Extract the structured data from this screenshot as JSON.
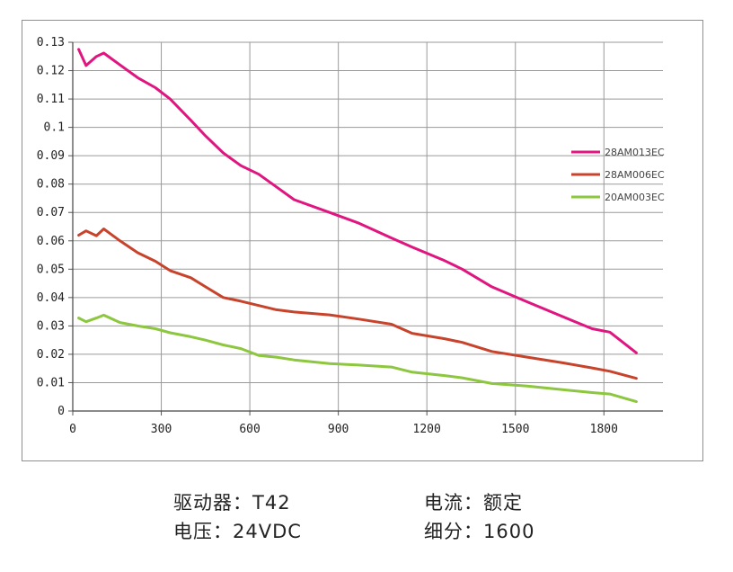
{
  "chart_data": {
    "type": "line",
    "title": "",
    "xlabel": "",
    "ylabel": "",
    "xlim": [
      0,
      2000
    ],
    "ylim": [
      0,
      0.13
    ],
    "x_ticks": [
      0,
      300,
      600,
      900,
      1200,
      1500,
      1800
    ],
    "y_ticks": [
      0,
      0.01,
      0.02,
      0.03,
      0.04,
      0.05,
      0.06,
      0.07,
      0.08,
      0.09,
      0.1,
      0.11,
      0.12,
      0.13
    ],
    "grid": true,
    "legend_position": "right",
    "series": [
      {
        "name": "28AM013EC",
        "color": "#e0157f",
        "points": [
          [
            20,
            0.1275
          ],
          [
            45,
            0.1218
          ],
          [
            80,
            0.125
          ],
          [
            105,
            0.1262
          ],
          [
            160,
            0.122
          ],
          [
            220,
            0.1175
          ],
          [
            280,
            0.114
          ],
          [
            330,
            0.11
          ],
          [
            400,
            0.1025
          ],
          [
            450,
            0.097
          ],
          [
            510,
            0.091
          ],
          [
            570,
            0.0865
          ],
          [
            630,
            0.0835
          ],
          [
            690,
            0.079
          ],
          [
            750,
            0.0745
          ],
          [
            870,
            0.07
          ],
          [
            970,
            0.0662
          ],
          [
            1080,
            0.061
          ],
          [
            1150,
            0.0578
          ],
          [
            1260,
            0.053
          ],
          [
            1320,
            0.05
          ],
          [
            1420,
            0.0438
          ],
          [
            1540,
            0.0385
          ],
          [
            1660,
            0.0333
          ],
          [
            1760,
            0.029
          ],
          [
            1820,
            0.0278
          ],
          [
            1910,
            0.0205
          ]
        ]
      },
      {
        "name": "28AM006EC",
        "color": "#c8432b",
        "points": [
          [
            20,
            0.062
          ],
          [
            45,
            0.0635
          ],
          [
            80,
            0.0618
          ],
          [
            105,
            0.0642
          ],
          [
            160,
            0.06
          ],
          [
            220,
            0.0558
          ],
          [
            280,
            0.0528
          ],
          [
            330,
            0.0495
          ],
          [
            400,
            0.047
          ],
          [
            450,
            0.0438
          ],
          [
            510,
            0.04
          ],
          [
            570,
            0.0387
          ],
          [
            630,
            0.0372
          ],
          [
            690,
            0.0357
          ],
          [
            750,
            0.0349
          ],
          [
            870,
            0.0339
          ],
          [
            970,
            0.0324
          ],
          [
            1080,
            0.0306
          ],
          [
            1150,
            0.0274
          ],
          [
            1260,
            0.0255
          ],
          [
            1320,
            0.0242
          ],
          [
            1420,
            0.021
          ],
          [
            1540,
            0.019
          ],
          [
            1660,
            0.017
          ],
          [
            1760,
            0.0152
          ],
          [
            1820,
            0.014
          ],
          [
            1910,
            0.0115
          ]
        ]
      },
      {
        "name": "20AM003EC",
        "color": "#8dc63f",
        "points": [
          [
            20,
            0.0328
          ],
          [
            45,
            0.0315
          ],
          [
            80,
            0.0328
          ],
          [
            105,
            0.0338
          ],
          [
            160,
            0.0312
          ],
          [
            220,
            0.03
          ],
          [
            280,
            0.029
          ],
          [
            330,
            0.0276
          ],
          [
            400,
            0.0262
          ],
          [
            450,
            0.025
          ],
          [
            510,
            0.0233
          ],
          [
            570,
            0.022
          ],
          [
            630,
            0.0196
          ],
          [
            690,
            0.019
          ],
          [
            750,
            0.018
          ],
          [
            870,
            0.0167
          ],
          [
            970,
            0.0162
          ],
          [
            1080,
            0.0155
          ],
          [
            1150,
            0.0137
          ],
          [
            1260,
            0.0125
          ],
          [
            1320,
            0.0117
          ],
          [
            1420,
            0.0097
          ],
          [
            1540,
            0.0088
          ],
          [
            1660,
            0.0075
          ],
          [
            1760,
            0.0065
          ],
          [
            1820,
            0.006
          ],
          [
            1910,
            0.0033
          ]
        ]
      }
    ]
  },
  "specs": {
    "driver": "驱动器：T42",
    "current": "电流：额定",
    "voltage": "电压：24VDC",
    "microstep": "细分：1600"
  }
}
